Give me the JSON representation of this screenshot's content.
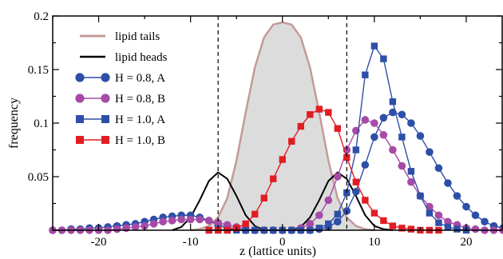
{
  "chart_data": {
    "type": "line",
    "xlabel": "z (lattice units)",
    "ylabel": "frequency",
    "xlim": [
      -25,
      24
    ],
    "ylim": [
      0,
      0.2
    ],
    "x_ticks": [
      -20,
      -10,
      0,
      10,
      20
    ],
    "x_tick_labels": [
      "-20",
      "-10",
      "0",
      "10",
      "20"
    ],
    "y_ticks": [
      0.05,
      0.1,
      0.15,
      0.2
    ],
    "y_tick_labels": [
      "0.05",
      "0.1",
      "0.15",
      "0.2"
    ],
    "legend_position": "top-left",
    "vertical_dashed_lines_x": [
      -7,
      7
    ],
    "series": [
      {
        "name": "lipid tails",
        "style": "filled-area",
        "color": "#c49a98",
        "fill": "#dcdcdc",
        "x": [
          -10,
          -9,
          -8,
          -7,
          -6,
          -5,
          -4,
          -3,
          -2,
          -1,
          0,
          1,
          2,
          3,
          4,
          5,
          6,
          7,
          8,
          9,
          10
        ],
        "y": [
          0,
          0.001,
          0.004,
          0.012,
          0.03,
          0.065,
          0.11,
          0.152,
          0.18,
          0.192,
          0.194,
          0.192,
          0.18,
          0.152,
          0.11,
          0.065,
          0.03,
          0.012,
          0.004,
          0.001,
          0
        ]
      },
      {
        "name": "lipid heads",
        "style": "line",
        "color": "#000000",
        "x": [
          -12,
          -11,
          -10,
          -9,
          -8,
          -7,
          -6,
          -5,
          -4,
          -3,
          -2,
          1,
          2,
          3,
          4,
          5,
          6,
          7,
          8,
          9,
          10,
          11,
          12
        ],
        "y": [
          0,
          0.003,
          0.012,
          0.028,
          0.046,
          0.054,
          0.048,
          0.032,
          0.014,
          0.004,
          0,
          0,
          0.003,
          0.012,
          0.028,
          0.046,
          0.054,
          0.048,
          0.032,
          0.014,
          0.004,
          0.001,
          0
        ]
      },
      {
        "name": "H = 0.8, A",
        "style": "line-circle",
        "color": "#2e4fa8",
        "x": [
          -25,
          -24,
          -23,
          -22,
          -21,
          -20,
          -19,
          -18,
          -17,
          -16,
          -15,
          -14,
          -13,
          -12,
          -11,
          -10,
          -9,
          -8,
          -7,
          -6,
          -5,
          -4,
          -3,
          -2,
          -1,
          0,
          1,
          2,
          3,
          4,
          5,
          6,
          7,
          8,
          9,
          10,
          11,
          12,
          13,
          14,
          15,
          16,
          17,
          18,
          19,
          20,
          21,
          22,
          23,
          24
        ],
        "y": [
          0,
          0,
          0.001,
          0.001,
          0.002,
          0.002,
          0.003,
          0.004,
          0.005,
          0.006,
          0.008,
          0.01,
          0.012,
          0.013,
          0.014,
          0.014,
          0.012,
          0.009,
          0.005,
          0.002,
          0.001,
          0,
          0,
          0,
          0,
          0,
          0,
          0,
          0,
          0.001,
          0.003,
          0.008,
          0.018,
          0.036,
          0.061,
          0.087,
          0.105,
          0.11,
          0.108,
          0.1,
          0.088,
          0.073,
          0.058,
          0.044,
          0.032,
          0.022,
          0.014,
          0.008,
          0.004,
          0.002
        ]
      },
      {
        "name": "H = 0.8, B",
        "style": "line-circle",
        "color": "#a74aa6",
        "x": [
          -25,
          -24,
          -23,
          -22,
          -21,
          -20,
          -19,
          -18,
          -17,
          -16,
          -15,
          -14,
          -13,
          -12,
          -11,
          -10,
          -9,
          -8,
          -7,
          -6,
          -5,
          -4,
          -3,
          -2,
          -1,
          0,
          1,
          2,
          3,
          4,
          5,
          6,
          7,
          8,
          9,
          10,
          11,
          12,
          13,
          14,
          15,
          16,
          17,
          18,
          19,
          20,
          21,
          22,
          23,
          24
        ],
        "y": [
          0,
          0,
          0,
          0,
          0,
          0,
          0,
          0.001,
          0.002,
          0.003,
          0.004,
          0.006,
          0.008,
          0.009,
          0.01,
          0.01,
          0.01,
          0.009,
          0.007,
          0.005,
          0.003,
          0.001,
          0,
          0,
          0,
          0,
          0,
          0.002,
          0.006,
          0.014,
          0.028,
          0.05,
          0.075,
          0.093,
          0.103,
          0.1,
          0.089,
          0.075,
          0.06,
          0.045,
          0.032,
          0.022,
          0.014,
          0.008,
          0.005,
          0.002,
          0.001,
          0,
          0,
          0
        ]
      },
      {
        "name": "H = 1.0, A",
        "style": "line-square",
        "color": "#2e4fa8",
        "x": [
          -8,
          -7,
          -6,
          -5,
          -4,
          -3,
          -2,
          -1,
          0,
          1,
          2,
          3,
          4,
          5,
          6,
          7,
          8,
          9,
          10,
          11,
          12,
          13,
          14,
          15,
          16,
          17,
          18,
          19,
          20
        ],
        "y": [
          0,
          0,
          0,
          0,
          0,
          0,
          0,
          0,
          0,
          0,
          0,
          0,
          0.002,
          0.006,
          0.015,
          0.035,
          0.075,
          0.145,
          0.172,
          0.16,
          0.12,
          0.087,
          0.055,
          0.032,
          0.016,
          0.007,
          0.003,
          0.001,
          0
        ]
      },
      {
        "name": "H = 1.0, B",
        "style": "line-square",
        "color": "#e11d24",
        "x": [
          -8,
          -7,
          -6,
          -5,
          -4,
          -3,
          -2,
          -1,
          0,
          1,
          2,
          3,
          4,
          5,
          6,
          7,
          8,
          9,
          10,
          11,
          12,
          13,
          14,
          15,
          16,
          17
        ],
        "y": [
          0,
          0,
          0,
          0.002,
          0.006,
          0.015,
          0.03,
          0.048,
          0.066,
          0.083,
          0.097,
          0.108,
          0.113,
          0.11,
          0.095,
          0.068,
          0.045,
          0.028,
          0.016,
          0.009,
          0.004,
          0.002,
          0.001,
          0,
          0,
          0
        ]
      }
    ]
  }
}
